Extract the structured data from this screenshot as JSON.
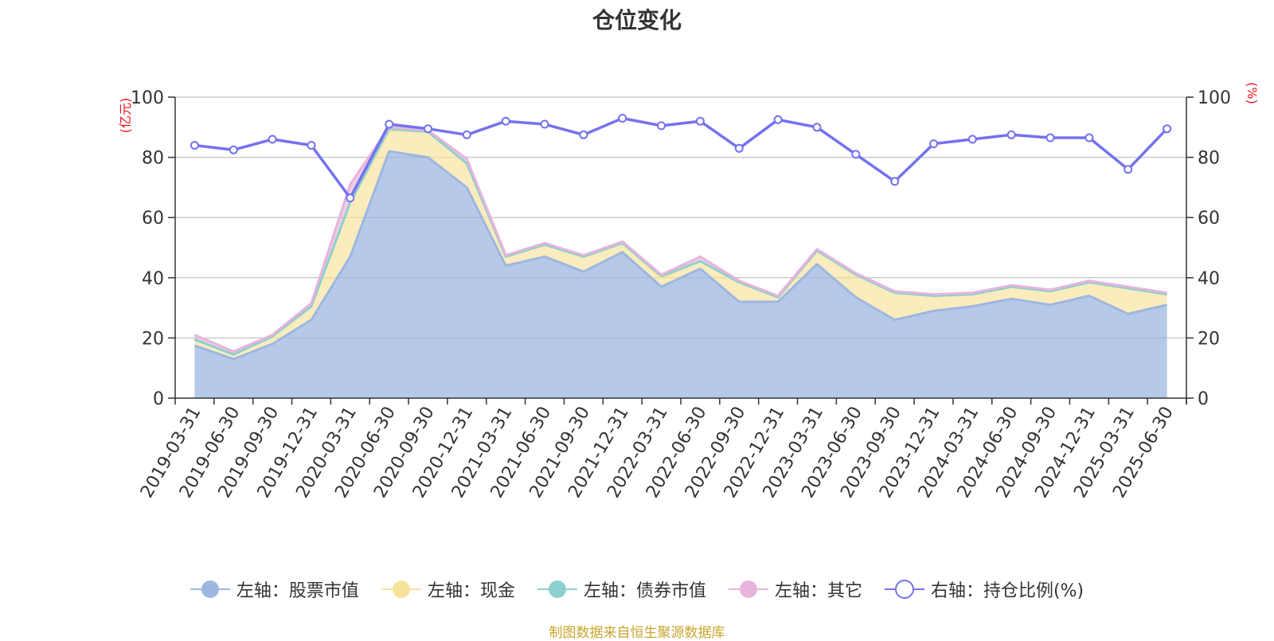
{
  "title": "仓位变化",
  "footer": "制图数据来自恒生聚源数据库",
  "colors": {
    "stock": "#9db7e0",
    "cash": "#f7e29a",
    "bond": "#8ecfcf",
    "other": "#e7b4dc",
    "ratio": "#7472ee",
    "unit": "#e8141c",
    "grid": "#cccccc",
    "axis": "#333333"
  },
  "chart_data": {
    "type": "area",
    "title": "仓位变化",
    "x": [
      "2019-03-31",
      "2019-06-30",
      "2019-09-30",
      "2019-12-31",
      "2020-03-31",
      "2020-06-30",
      "2020-09-30",
      "2020-12-31",
      "2021-03-31",
      "2021-06-30",
      "2021-09-30",
      "2021-12-31",
      "2022-03-31",
      "2022-06-30",
      "2022-09-30",
      "2022-12-31",
      "2023-03-31",
      "2023-06-30",
      "2023-09-30",
      "2023-12-31",
      "2024-03-31",
      "2024-06-30",
      "2024-09-30",
      "2024-12-31",
      "2025-03-31",
      "2025-06-30"
    ],
    "left_axis": {
      "unit_label": "(亿元)",
      "ylim": [
        0,
        100
      ],
      "ticks": [
        0,
        20,
        40,
        60,
        80,
        100
      ]
    },
    "right_axis": {
      "unit_label": "(%)",
      "ylim": [
        0,
        100
      ],
      "ticks": [
        0,
        20,
        40,
        60,
        80,
        100
      ]
    },
    "grid": true,
    "legend_position": "bottom-center",
    "series": [
      {
        "name": "左轴：股票市值",
        "axis": "left",
        "stack": true,
        "color_key": "stock",
        "values": [
          17.5,
          13,
          18,
          26,
          47,
          82,
          80,
          70,
          44,
          47,
          42,
          48.5,
          37,
          43,
          32,
          32,
          44.5,
          33.5,
          26,
          29,
          30.5,
          33,
          31,
          34,
          28,
          31
        ]
      },
      {
        "name": "左轴：现金",
        "axis": "left",
        "stack": true,
        "color_key": "cash",
        "values": [
          2,
          1.5,
          2.5,
          4.5,
          18,
          7,
          8.5,
          8,
          3,
          4,
          5,
          3,
          3,
          2.5,
          6.5,
          1.5,
          4.5,
          7.5,
          9,
          5,
          4,
          4,
          4.5,
          4.5,
          8.5,
          3.5
        ]
      },
      {
        "name": "左轴：债券市值",
        "axis": "left",
        "stack": true,
        "color_key": "bond",
        "values": [
          0,
          0,
          0,
          0,
          0,
          0.5,
          0,
          0,
          0,
          0,
          0,
          0,
          0.5,
          0,
          0,
          0,
          0,
          0,
          0,
          0,
          0,
          0,
          0,
          0,
          0,
          0
        ]
      },
      {
        "name": "左轴：其它",
        "axis": "left",
        "stack": true,
        "color_key": "other",
        "values": [
          1.5,
          1,
          0.5,
          1,
          6,
          0.5,
          0.5,
          1.5,
          0.5,
          0.5,
          0.5,
          0.5,
          0.5,
          1.5,
          0.5,
          0.5,
          0.5,
          0.5,
          0.5,
          0.5,
          0.5,
          0.5,
          0.5,
          0.5,
          0.5,
          0.5
        ]
      },
      {
        "name": "右轴：持仓比例(%)",
        "axis": "right",
        "stack": false,
        "color_key": "ratio",
        "values": [
          84,
          82.5,
          86,
          84,
          66.5,
          91,
          89.5,
          87.5,
          92,
          91,
          87.5,
          93,
          90.5,
          92,
          83,
          92.5,
          90,
          81,
          72,
          84.5,
          86,
          87.5,
          86.5,
          86.5,
          76,
          89.5
        ]
      }
    ]
  }
}
